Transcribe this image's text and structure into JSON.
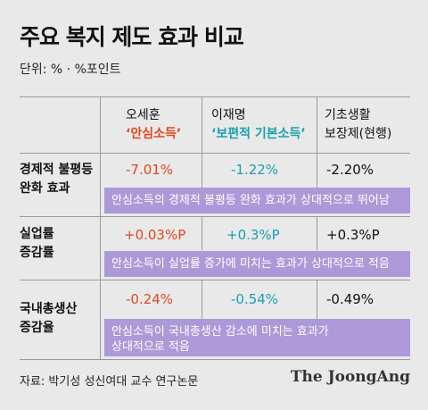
{
  "title": "주요 복지 제도 효과 비교",
  "unit": "단위: % · %포인트",
  "columns": [
    {
      "line1": "오세훈",
      "line2": "‘안심소득’"
    },
    {
      "line1": "이재명",
      "line2": "‘보편적 기본소득’"
    },
    {
      "line1": "기초생활",
      "line2": "보장제(현행)"
    }
  ],
  "rows": [
    {
      "label1": "경제적 불평등",
      "label2": "완화 효과",
      "values": [
        "-7.01%",
        "-1.22%",
        "-2.20%"
      ],
      "note": "안심소득의 경제적 불평등 완화 효과가 상대적으로 뛰어남"
    },
    {
      "label1": "실업률",
      "label2": "증감률",
      "values": [
        "+0.03%P",
        "+0.3%P",
        "+0.3%P"
      ],
      "note": "안심소득이 실업률 증가에 미치는 효과가 상대적으로 적음"
    },
    {
      "label1": "국내총생산",
      "label2": "증감율",
      "values": [
        "-0.24%",
        "-0.54%",
        "-0.49%"
      ],
      "note_line1": "안심소득이 국내총생산 감소에 미치는 효과가",
      "note_line2": "상대적으로 적음"
    }
  ],
  "source": "자료: 박기성 성신여대 교수 연구논문",
  "logo": "The JoongAng",
  "colors": {
    "accent_orange": "#e0481f",
    "accent_teal": "#1aa0ae",
    "note_bg": "#ad99d8",
    "background": "#e9e9e9"
  }
}
